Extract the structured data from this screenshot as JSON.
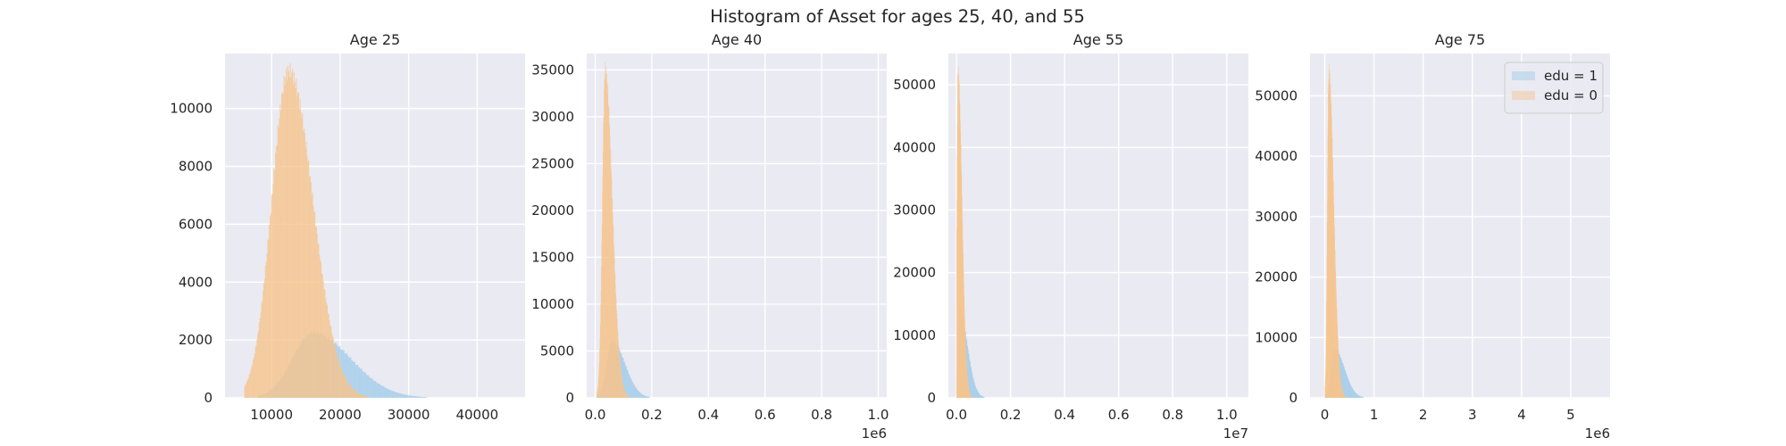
{
  "chart_data": {
    "title": "Histogram of Asset for ages 25, 40, and 55",
    "type": "histogram",
    "colors": {
      "edu1": "#9ecae9",
      "edu0": "#f5c48e",
      "background": "#eaeaf2",
      "grid": "#ffffff"
    },
    "legend": {
      "position": "top-right",
      "panel": 4,
      "entries": [
        "edu = 1",
        "edu = 0"
      ]
    },
    "panels": [
      {
        "title": "Age 25",
        "xlim": [
          3200,
          47000
        ],
        "ylim": [
          0,
          11900
        ],
        "xticks": [
          10000,
          20000,
          30000,
          40000
        ],
        "xtick_labels": [
          "10000",
          "20000",
          "30000",
          "40000"
        ],
        "yticks": [
          0,
          2000,
          4000,
          6000,
          8000,
          10000
        ],
        "ytick_labels": [
          "0",
          "2000",
          "4000",
          "6000",
          "8000",
          "10000"
        ],
        "offset_label": "",
        "series": [
          {
            "name": "edu = 0",
            "peak_x": 12500,
            "peak_y": 11300,
            "range": [
              6000,
              24000
            ],
            "skew_left": 2500,
            "skew_right": 3500
          },
          {
            "name": "edu = 1",
            "peak_x": 16000,
            "peak_y": 2250,
            "range": [
              8000,
              40000
            ],
            "skew_left": 3000,
            "skew_right": 5500
          }
        ]
      },
      {
        "title": "Age 40",
        "xlim": [
          -0.03,
          1.03
        ],
        "ylim": [
          0,
          36750
        ],
        "xticks": [
          0,
          0.2,
          0.4,
          0.6,
          0.8,
          1.0
        ],
        "xtick_labels": [
          "0.0",
          "0.2",
          "0.4",
          "0.6",
          "0.8",
          "1.0"
        ],
        "yticks": [
          0,
          5000,
          10000,
          15000,
          20000,
          25000,
          30000,
          35000
        ],
        "ytick_labels": [
          "0",
          "5000",
          "10000",
          "15000",
          "20000",
          "25000",
          "30000",
          "35000"
        ],
        "offset_label": "1e6",
        "series": [
          {
            "name": "edu = 0",
            "peak_x": 0.035,
            "peak_y": 35000,
            "range": [
              0.005,
              0.2
            ],
            "skew_left": 0.01,
            "skew_right": 0.025
          },
          {
            "name": "edu = 1",
            "peak_x": 0.06,
            "peak_y": 6000,
            "range": [
              0.005,
              0.35
            ],
            "skew_left": 0.02,
            "skew_right": 0.045
          }
        ]
      },
      {
        "title": "Age 55",
        "xlim": [
          -0.03,
          1.08
        ],
        "ylim": [
          0,
          55000
        ],
        "xticks": [
          0,
          0.2,
          0.4,
          0.6,
          0.8,
          1.0
        ],
        "xtick_labels": [
          "0.0",
          "0.2",
          "0.4",
          "0.6",
          "0.8",
          "1.0"
        ],
        "yticks": [
          0,
          10000,
          20000,
          30000,
          40000,
          50000
        ],
        "ytick_labels": [
          "0",
          "10000",
          "20000",
          "30000",
          "40000",
          "50000"
        ],
        "offset_label": "1e7",
        "series": [
          {
            "name": "edu = 0",
            "peak_x": 0.005,
            "peak_y": 52000,
            "range": [
              0.0,
              0.12
            ],
            "skew_left": 0.004,
            "skew_right": 0.015
          },
          {
            "name": "edu = 1",
            "peak_x": 0.01,
            "peak_y": 14000,
            "range": [
              0.0,
              0.25
            ],
            "skew_left": 0.006,
            "skew_right": 0.03
          }
        ]
      },
      {
        "title": "Age 75",
        "xlim": [
          -0.3,
          5.8
        ],
        "ylim": [
          0,
          57000
        ],
        "xticks": [
          0,
          1,
          2,
          3,
          4,
          5
        ],
        "xtick_labels": [
          "0",
          "1",
          "2",
          "3",
          "4",
          "5"
        ],
        "yticks": [
          0,
          10000,
          20000,
          30000,
          40000,
          50000
        ],
        "ytick_labels": [
          "0",
          "10000",
          "20000",
          "30000",
          "40000",
          "50000"
        ],
        "offset_label": "1e6",
        "series": [
          {
            "name": "edu = 0",
            "peak_x": 0.08,
            "peak_y": 54000,
            "range": [
              0.0,
              0.7
            ],
            "skew_left": 0.03,
            "skew_right": 0.1
          },
          {
            "name": "edu = 1",
            "peak_x": 0.2,
            "peak_y": 8000,
            "range": [
              0.0,
              1.4
            ],
            "skew_left": 0.08,
            "skew_right": 0.2
          }
        ]
      }
    ]
  }
}
